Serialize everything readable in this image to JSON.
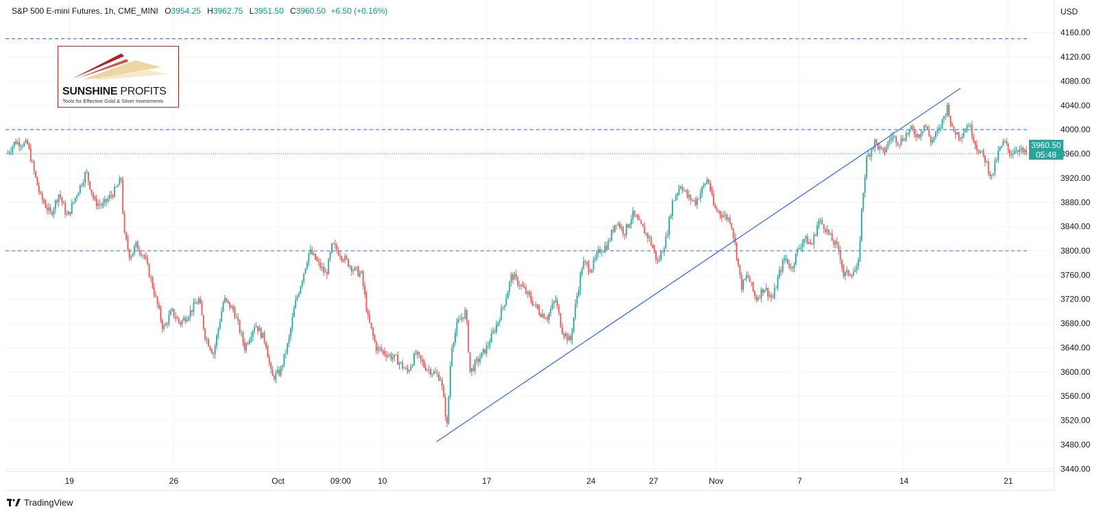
{
  "header": {
    "symbol": "S&P 500 E-mini Futures, 1h, CME_MINI",
    "open_label": "O",
    "open": "3954.25",
    "high_label": "H",
    "high": "3962.75",
    "low_label": "L",
    "low": "3951.50",
    "close_label": "C",
    "close": "3960.50",
    "change": "+6.50 (+0.16%)"
  },
  "currency": "USD",
  "price_tag": {
    "price": "3960.50",
    "countdown": "05:48",
    "color": "#26a69a"
  },
  "logo": {
    "title_bold": "SUNSHINE",
    "title_light": " PROFITS",
    "subtitle": "Tools for Effective Gold & Silver Investments"
  },
  "footer": {
    "brand": "TradingView"
  },
  "colors": {
    "up": "#26a69a",
    "down": "#ef5350",
    "levels": "#2962ff",
    "trendline": "#2962ff"
  },
  "chart_data": {
    "type": "candlestick",
    "title": "S&P 500 E-mini Futures, 1h, CME_MINI",
    "ylabel": "USD",
    "ylim": [
      3420,
      4180
    ],
    "y_ticks": [
      4160,
      4120,
      4080,
      4040,
      4000,
      3960,
      3920,
      3880,
      3840,
      3800,
      3760,
      3720,
      3680,
      3640,
      3600,
      3560,
      3520,
      3480,
      3440
    ],
    "x_ticks": [
      {
        "label": "19",
        "t": 3
      },
      {
        "label": "26",
        "t": 8
      },
      {
        "label": "Oct",
        "t": 13
      },
      {
        "label": "09:00",
        "t": 16
      },
      {
        "label": "10",
        "t": 18
      },
      {
        "label": "17",
        "t": 23
      },
      {
        "label": "24",
        "t": 28
      },
      {
        "label": "27",
        "t": 31
      },
      {
        "label": "Nov",
        "t": 34
      },
      {
        "label": "7",
        "t": 38
      },
      {
        "label": "14",
        "t": 43
      },
      {
        "label": "21",
        "t": 48
      }
    ],
    "t_range": [
      0.0,
      48.96
    ],
    "horizontal_levels": [
      4150,
      4000,
      3800
    ],
    "last_price": 3960.5,
    "trendline": [
      {
        "t": 20.6,
        "y": 3485
      },
      {
        "t": 45.7,
        "y": 4068
      }
    ],
    "path": [
      [
        0.0,
        3960
      ],
      [
        0.4,
        3980
      ],
      [
        1.0,
        3975
      ],
      [
        1.3,
        3930
      ],
      [
        1.6,
        3890
      ],
      [
        2.1,
        3860
      ],
      [
        2.5,
        3895
      ],
      [
        2.9,
        3855
      ],
      [
        3.3,
        3890
      ],
      [
        3.8,
        3930
      ],
      [
        4.2,
        3880
      ],
      [
        4.6,
        3875
      ],
      [
        5.2,
        3900
      ],
      [
        5.5,
        3920
      ],
      [
        5.6,
        3830
      ],
      [
        5.9,
        3790
      ],
      [
        6.2,
        3810
      ],
      [
        6.6,
        3790
      ],
      [
        7.0,
        3740
      ],
      [
        7.5,
        3670
      ],
      [
        7.9,
        3700
      ],
      [
        8.3,
        3680
      ],
      [
        8.8,
        3700
      ],
      [
        9.2,
        3720
      ],
      [
        9.5,
        3660
      ],
      [
        9.9,
        3630
      ],
      [
        10.4,
        3720
      ],
      [
        10.9,
        3700
      ],
      [
        11.4,
        3640
      ],
      [
        11.9,
        3680
      ],
      [
        12.4,
        3650
      ],
      [
        12.7,
        3590
      ],
      [
        13.1,
        3600
      ],
      [
        13.5,
        3650
      ],
      [
        13.8,
        3710
      ],
      [
        14.2,
        3760
      ],
      [
        14.5,
        3800
      ],
      [
        14.9,
        3780
      ],
      [
        15.3,
        3760
      ],
      [
        15.6,
        3810
      ],
      [
        16.1,
        3790
      ],
      [
        16.6,
        3770
      ],
      [
        17.0,
        3760
      ],
      [
        17.3,
        3690
      ],
      [
        17.7,
        3640
      ],
      [
        18.2,
        3630
      ],
      [
        18.7,
        3620
      ],
      [
        19.2,
        3600
      ],
      [
        19.6,
        3630
      ],
      [
        20.0,
        3610
      ],
      [
        20.4,
        3600
      ],
      [
        20.8,
        3590
      ],
      [
        21.1,
        3510
      ],
      [
        21.3,
        3640
      ],
      [
        21.6,
        3680
      ],
      [
        22.0,
        3700
      ],
      [
        22.2,
        3600
      ],
      [
        22.6,
        3620
      ],
      [
        23.0,
        3640
      ],
      [
        23.5,
        3680
      ],
      [
        23.9,
        3720
      ],
      [
        24.2,
        3760
      ],
      [
        24.7,
        3740
      ],
      [
        25.1,
        3720
      ],
      [
        25.5,
        3700
      ],
      [
        25.9,
        3690
      ],
      [
        26.3,
        3720
      ],
      [
        26.6,
        3670
      ],
      [
        27.0,
        3650
      ],
      [
        27.3,
        3720
      ],
      [
        27.6,
        3780
      ],
      [
        28.0,
        3770
      ],
      [
        28.4,
        3800
      ],
      [
        28.8,
        3810
      ],
      [
        29.2,
        3850
      ],
      [
        29.6,
        3830
      ],
      [
        30.0,
        3860
      ],
      [
        30.4,
        3840
      ],
      [
        30.8,
        3820
      ],
      [
        31.2,
        3780
      ],
      [
        31.6,
        3820
      ],
      [
        31.9,
        3880
      ],
      [
        32.3,
        3910
      ],
      [
        32.6,
        3890
      ],
      [
        33.0,
        3880
      ],
      [
        33.3,
        3900
      ],
      [
        33.6,
        3920
      ],
      [
        33.9,
        3870
      ],
      [
        34.3,
        3860
      ],
      [
        34.7,
        3850
      ],
      [
        35.0,
        3790
      ],
      [
        35.2,
        3740
      ],
      [
        35.5,
        3760
      ],
      [
        35.9,
        3720
      ],
      [
        36.3,
        3740
      ],
      [
        36.7,
        3720
      ],
      [
        37.0,
        3760
      ],
      [
        37.3,
        3790
      ],
      [
        37.6,
        3770
      ],
      [
        37.9,
        3800
      ],
      [
        38.2,
        3820
      ],
      [
        38.6,
        3810
      ],
      [
        38.9,
        3850
      ],
      [
        39.2,
        3840
      ],
      [
        39.5,
        3820
      ],
      [
        39.9,
        3800
      ],
      [
        40.1,
        3760
      ],
      [
        40.5,
        3765
      ],
      [
        40.8,
        3770
      ],
      [
        41.0,
        3880
      ],
      [
        41.2,
        3950
      ],
      [
        41.6,
        3980
      ],
      [
        42.0,
        3960
      ],
      [
        42.4,
        3990
      ],
      [
        42.8,
        3980
      ],
      [
        43.3,
        4000
      ],
      [
        43.7,
        3990
      ],
      [
        44.0,
        4010
      ],
      [
        44.3,
        3980
      ],
      [
        44.7,
        4000
      ],
      [
        45.1,
        4040
      ],
      [
        45.3,
        4000
      ],
      [
        45.7,
        3990
      ],
      [
        46.1,
        4010
      ],
      [
        46.5,
        3970
      ],
      [
        46.9,
        3950
      ],
      [
        47.2,
        3920
      ],
      [
        47.5,
        3960
      ],
      [
        47.8,
        3980
      ],
      [
        48.1,
        3960
      ],
      [
        48.4,
        3970
      ],
      [
        48.8,
        3960
      ]
    ]
  }
}
